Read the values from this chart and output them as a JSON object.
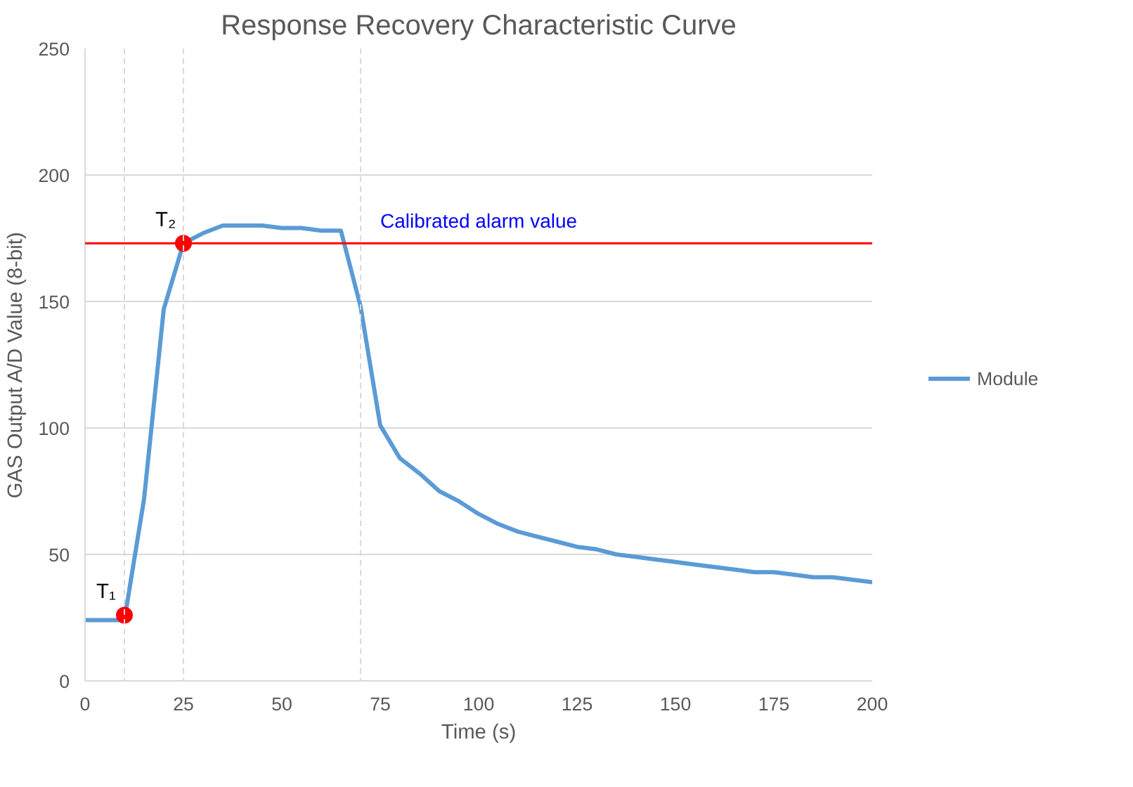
{
  "chart_data": {
    "type": "line",
    "title": "Response Recovery Characteristic Curve",
    "xlabel": "Time (s)",
    "ylabel": "GAS Output A/D Value (8-bit)",
    "xlim": [
      0,
      200
    ],
    "xticks": [
      0,
      25,
      50,
      75,
      100,
      125,
      150,
      175,
      200
    ],
    "ylim": [
      0,
      250
    ],
    "yticks": [
      0,
      50,
      100,
      150,
      200,
      250
    ],
    "grid": "y",
    "legend": "right",
    "line_style": "solid",
    "series": [
      {
        "name": "Module",
        "color": "#5b9bd5",
        "x": [
          0,
          5,
          10,
          15,
          20,
          25,
          30,
          35,
          40,
          45,
          50,
          55,
          60,
          65,
          70,
          75,
          80,
          85,
          90,
          95,
          100,
          105,
          110,
          115,
          120,
          125,
          130,
          135,
          140,
          145,
          150,
          155,
          160,
          165,
          170,
          175,
          180,
          185,
          190,
          195,
          200
        ],
        "values": [
          24,
          24,
          24,
          72,
          147,
          173,
          177,
          180,
          180,
          180,
          179,
          179,
          178,
          178,
          148,
          101,
          88,
          82,
          75,
          71,
          66,
          62,
          59,
          57,
          55,
          53,
          52,
          50,
          49,
          48,
          47,
          46,
          45,
          44,
          43,
          43,
          42,
          41,
          41,
          40,
          39
        ]
      },
      {
        "type": "scatter",
        "marker": "circle",
        "color": "#ff0000",
        "x": [
          10,
          25
        ],
        "values": [
          26,
          173
        ]
      }
    ],
    "ref_lines": [
      {
        "axis": "y",
        "value": 173,
        "label": "Calibrated alarm value",
        "color": "#ff0000",
        "line_style": "solid"
      },
      {
        "axis": "x",
        "value": 10,
        "color": "#d9d9d9",
        "line_style": "dashed"
      },
      {
        "axis": "x",
        "value": 25,
        "color": "#d9d9d9",
        "line_style": "dashed"
      },
      {
        "axis": "x",
        "value": 70,
        "color": "#d9d9d9",
        "line_style": "dashed"
      }
    ],
    "annotations": [
      {
        "text": "T₁",
        "x": 10,
        "y": 26
      },
      {
        "text": "T₂",
        "x": 25,
        "y": 173
      }
    ]
  }
}
